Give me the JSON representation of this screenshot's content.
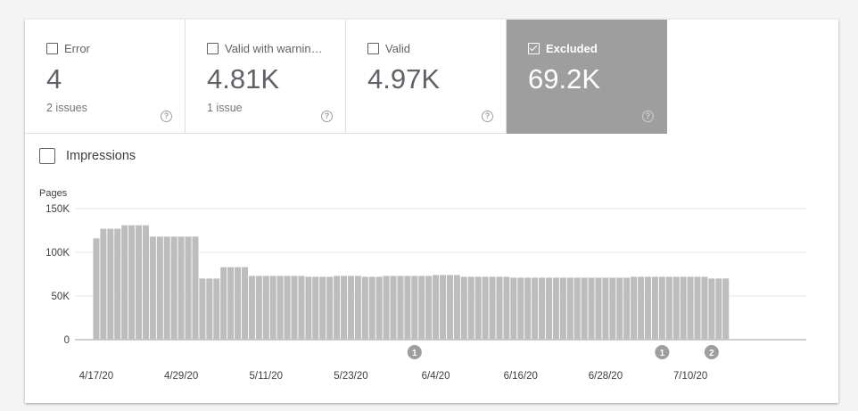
{
  "tiles": [
    {
      "label": "Error",
      "value": "4",
      "sub": "2 issues",
      "help": "?",
      "selected": false
    },
    {
      "label": "Valid with warnin…",
      "value": "4.81K",
      "sub": "1 issue",
      "help": "?",
      "selected": false
    },
    {
      "label": "Valid",
      "value": "4.97K",
      "sub": "",
      "help": "?",
      "selected": false
    },
    {
      "label": "Excluded",
      "value": "69.2K",
      "sub": "",
      "help": "?",
      "selected": true
    }
  ],
  "impressions": {
    "label": "Impressions",
    "checked": false
  },
  "chart_data": {
    "type": "bar",
    "ylabel": "Pages",
    "ylim": [
      0,
      150000
    ],
    "yticks": [
      {
        "v": 0,
        "label": "0"
      },
      {
        "v": 50000,
        "label": "50K"
      },
      {
        "v": 100000,
        "label": "100K"
      },
      {
        "v": 150000,
        "label": "150K"
      }
    ],
    "xticks": [
      {
        "i": 0,
        "label": "4/17/20"
      },
      {
        "i": 12,
        "label": "4/29/20"
      },
      {
        "i": 24,
        "label": "5/11/20"
      },
      {
        "i": 36,
        "label": "5/23/20"
      },
      {
        "i": 48,
        "label": "6/4/20"
      },
      {
        "i": 60,
        "label": "6/16/20"
      },
      {
        "i": 72,
        "label": "6/28/20"
      },
      {
        "i": 84,
        "label": "7/10/20"
      }
    ],
    "grid": true,
    "bar_color": "#bdbdbd",
    "values": [
      116000,
      127000,
      127000,
      127000,
      131000,
      131000,
      131000,
      131000,
      118000,
      118000,
      118000,
      118000,
      118000,
      118000,
      118000,
      70000,
      70000,
      70000,
      83000,
      83000,
      83000,
      83000,
      73000,
      73000,
      73000,
      73000,
      73000,
      73000,
      73000,
      73000,
      72000,
      72000,
      72000,
      72000,
      73000,
      73000,
      73000,
      73000,
      72000,
      72000,
      72000,
      73000,
      73000,
      73000,
      73000,
      73000,
      73000,
      73000,
      74000,
      74000,
      74000,
      74000,
      72000,
      72000,
      72000,
      72000,
      72000,
      72000,
      72000,
      71000,
      71000,
      71000,
      71000,
      71000,
      71000,
      71000,
      71000,
      71000,
      71000,
      71000,
      71000,
      71000,
      71000,
      71000,
      71000,
      71000,
      72000,
      72000,
      72000,
      72000,
      72000,
      72000,
      72000,
      72000,
      72000,
      72000,
      72000,
      70000,
      70000,
      70000
    ],
    "annotations": [
      {
        "i": 45,
        "label": "1"
      },
      {
        "i": 80,
        "label": "1"
      },
      {
        "i": 87,
        "label": "2"
      }
    ]
  }
}
